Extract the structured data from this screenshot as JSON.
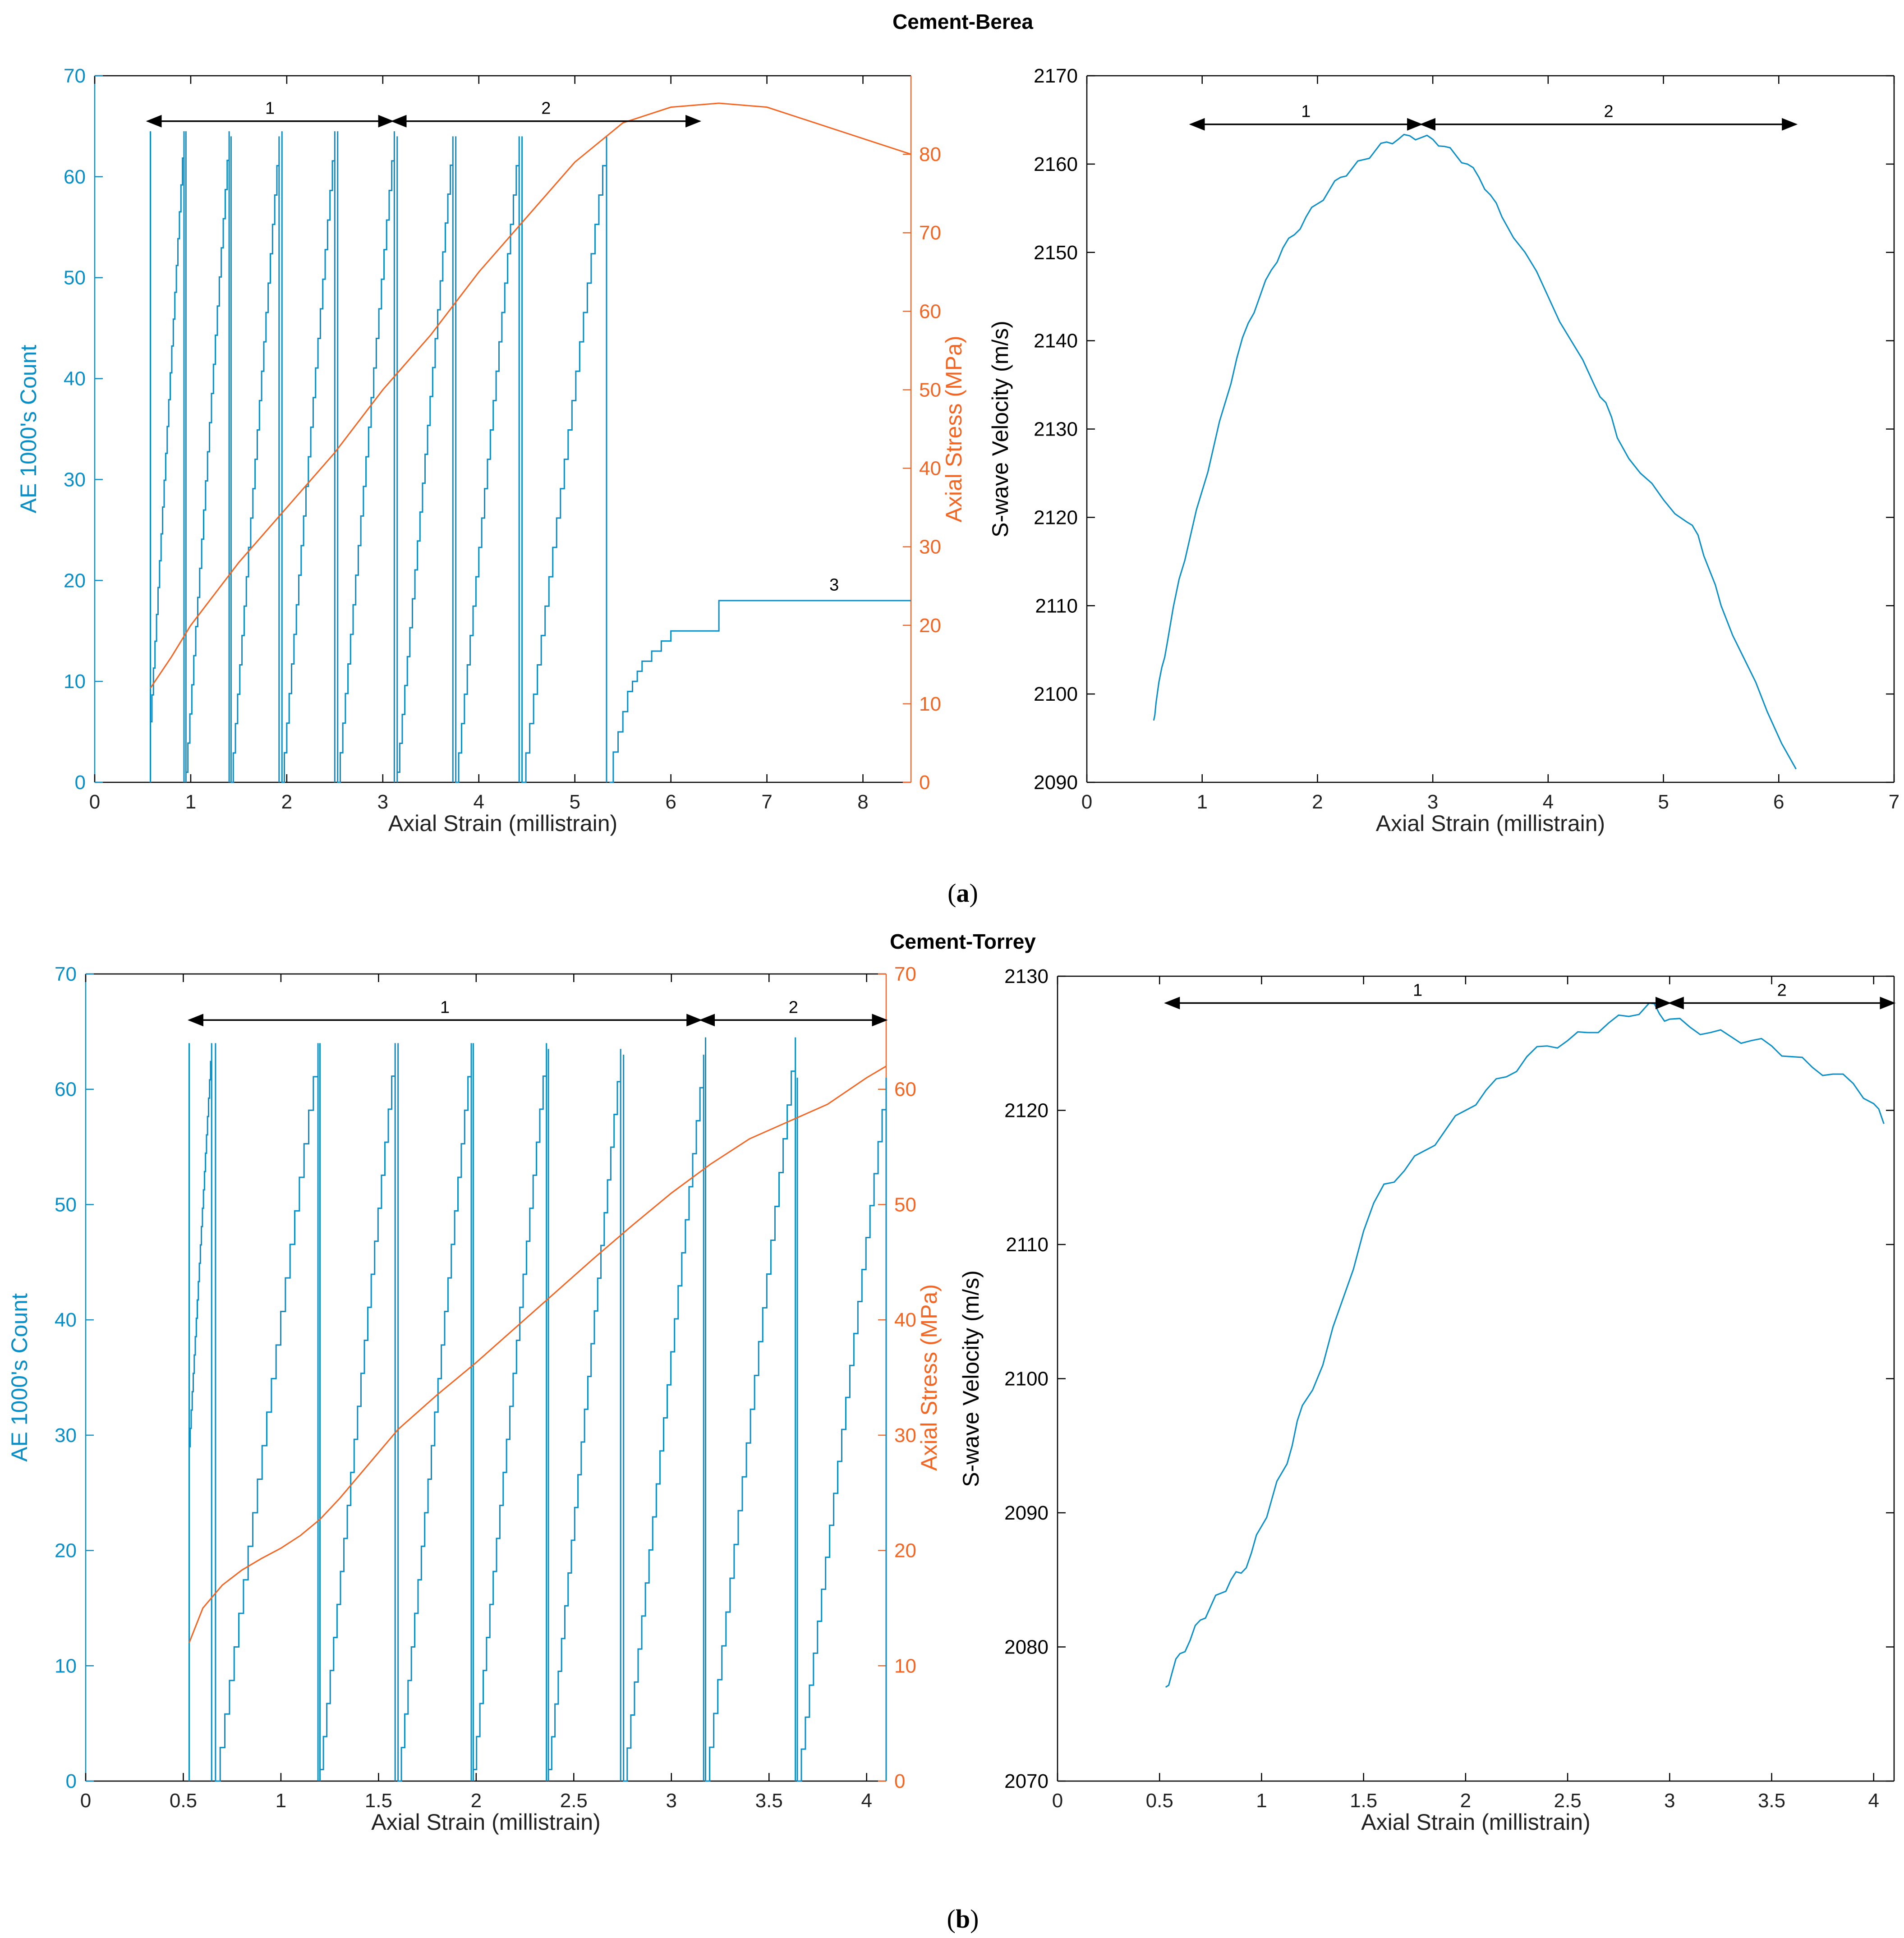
{
  "colors": {
    "ae": "#0a8ec6",
    "stress": "#f26522",
    "vel": "#0a8ec6",
    "axis": "#000000",
    "arrow": "#000000"
  },
  "figure": {
    "panel_a_title": "Cement-Berea",
    "panel_b_title": "Cement-Torrey",
    "caption_a": "a",
    "caption_b": "b"
  },
  "chart_data": [
    {
      "id": "a-left",
      "type": "line",
      "title": "Cement-Berea",
      "xlabel": "Axial Strain (millistrain)",
      "ylabel": "AE 1000's Count",
      "y2label": "Axial Stress (MPa)",
      "xlim": [
        0,
        8.5
      ],
      "ylim": [
        0,
        70
      ],
      "y2lim": [
        0,
        90
      ],
      "xticks": [
        0,
        1,
        2,
        3,
        4,
        5,
        6,
        7,
        8
      ],
      "xtick_labels": [
        "0",
        "1",
        "2",
        "3",
        "4",
        "5",
        "6",
        "7",
        "8"
      ],
      "yticks": [
        0,
        10,
        20,
        30,
        40,
        50,
        60,
        70
      ],
      "ytick_labels": [
        "0",
        "10",
        "20",
        "30",
        "40",
        "50",
        "60",
        "70"
      ],
      "y2ticks": [
        0,
        10,
        20,
        30,
        40,
        50,
        60,
        70,
        80
      ],
      "y2tick_labels": [
        "0",
        "10",
        "20",
        "30",
        "40",
        "50",
        "60",
        "70",
        "80"
      ],
      "ae_cycles": [
        {
          "x0": 0.58,
          "x1": 0.93,
          "y0": 6,
          "top": 64.5
        },
        {
          "x0": 0.95,
          "x1": 1.4,
          "y0": 1,
          "top": 64.5
        },
        {
          "x0": 1.42,
          "x1": 1.92,
          "y0": 0,
          "top": 64
        },
        {
          "x0": 1.95,
          "x1": 2.5,
          "y0": 0,
          "top": 64.5
        },
        {
          "x0": 2.53,
          "x1": 3.12,
          "y0": 0,
          "top": 64.5
        },
        {
          "x0": 3.15,
          "x1": 3.73,
          "y0": 1,
          "top": 64
        },
        {
          "x0": 3.76,
          "x1": 4.42,
          "y0": 0,
          "top": 64
        },
        {
          "x0": 4.45,
          "x1": 5.33,
          "y0": 0,
          "top": 64
        }
      ],
      "ae_tail": {
        "x": [
          5.36,
          5.4,
          5.45,
          5.5,
          5.55,
          5.6,
          5.65,
          5.7,
          5.8,
          5.9,
          6.0,
          6.4,
          6.5,
          8.5
        ],
        "y": [
          0,
          3,
          5,
          7,
          9,
          10,
          11,
          12,
          13,
          14,
          15,
          15,
          18,
          18
        ]
      },
      "stress_curve": {
        "x": [
          0.58,
          0.8,
          1.0,
          1.5,
          2.0,
          2.5,
          3.0,
          3.5,
          4.0,
          4.5,
          5.0,
          5.5,
          6.0,
          6.5,
          7.0,
          7.5,
          8.0,
          8.5
        ],
        "y": [
          12,
          16,
          20,
          28,
          35,
          42,
          50,
          57,
          65,
          72,
          79,
          84,
          86,
          86.5,
          86,
          84,
          82,
          80
        ]
      },
      "annotations": [
        {
          "type": "arrow",
          "x0": 0.55,
          "x1": 3.1,
          "y": 65.5,
          "label": "1"
        },
        {
          "type": "arrow",
          "x0": 3.1,
          "x1": 6.3,
          "y": 65.5,
          "label": "2"
        },
        {
          "type": "label",
          "x": 7.7,
          "y": 19,
          "label": "3"
        }
      ]
    },
    {
      "id": "a-right",
      "type": "line",
      "xlabel": "Axial Strain (millistrain)",
      "ylabel": "S-wave Velocity (m/s)",
      "xlim": [
        0,
        7
      ],
      "ylim": [
        2090,
        2170
      ],
      "xticks": [
        0,
        1,
        2,
        3,
        4,
        5,
        6,
        7
      ],
      "xtick_labels": [
        "0",
        "1",
        "2",
        "3",
        "4",
        "5",
        "6",
        "7"
      ],
      "yticks": [
        2090,
        2100,
        2110,
        2120,
        2130,
        2140,
        2150,
        2160,
        2170
      ],
      "ytick_labels": [
        "2090",
        "2100",
        "2110",
        "2120",
        "2130",
        "2140",
        "2150",
        "2160",
        "2170"
      ],
      "series": [
        {
          "name": "S-wave Velocity",
          "x": [
            0.58,
            0.6,
            0.65,
            0.7,
            0.8,
            0.9,
            1.0,
            1.1,
            1.2,
            1.3,
            1.4,
            1.5,
            1.6,
            1.7,
            1.8,
            1.9,
            2.0,
            2.1,
            2.2,
            2.3,
            2.4,
            2.5,
            2.6,
            2.7,
            2.8,
            2.9,
            3.0,
            3.1,
            3.2,
            3.3,
            3.4,
            3.5,
            3.6,
            3.8,
            4.0,
            4.2,
            4.4,
            4.5,
            4.6,
            4.8,
            5.0,
            5.2,
            5.3,
            5.4,
            5.5,
            5.7,
            5.9,
            6.15
          ],
          "y": [
            2097,
            2099,
            2103,
            2106,
            2113,
            2118,
            2123,
            2128,
            2133,
            2138,
            2142,
            2145,
            2148,
            2150.5,
            2152,
            2154,
            2155.5,
            2157,
            2158.5,
            2159.5,
            2160.5,
            2161.5,
            2162.5,
            2162.8,
            2163.2,
            2163,
            2162.8,
            2162,
            2161,
            2160,
            2158.5,
            2156.5,
            2154,
            2150,
            2145,
            2140,
            2135,
            2133,
            2129,
            2125,
            2122,
            2119.5,
            2118,
            2114,
            2110,
            2104,
            2098,
            2091.5
          ]
        }
      ],
      "annotations": [
        {
          "type": "arrow",
          "x0": 0.9,
          "x1": 2.9,
          "y": 2164.5,
          "label": "1"
        },
        {
          "type": "arrow",
          "x0": 2.9,
          "x1": 6.15,
          "y": 2164.5,
          "label": "2"
        }
      ]
    },
    {
      "id": "b-left",
      "type": "line",
      "title": "Cement-Torrey",
      "xlabel": "Axial Strain (millistrain)",
      "ylabel": "AE 1000's Count",
      "y2label": "Axial Stress (MPa)",
      "xlim": [
        0,
        4.1
      ],
      "ylim": [
        0,
        70
      ],
      "y2lim": [
        0,
        70
      ],
      "xticks": [
        0,
        0.5,
        1,
        1.5,
        2,
        2.5,
        3,
        3.5,
        4
      ],
      "xtick_labels": [
        "0",
        "0.5",
        "1",
        "1.5",
        "2",
        "2.5",
        "3",
        "3.5",
        "4"
      ],
      "yticks": [
        0,
        10,
        20,
        30,
        40,
        50,
        60,
        70
      ],
      "ytick_labels": [
        "0",
        "10",
        "20",
        "30",
        "40",
        "50",
        "60",
        "70"
      ],
      "y2ticks": [
        0,
        10,
        20,
        30,
        40,
        50,
        60,
        70
      ],
      "y2tick_labels": [
        "0",
        "10",
        "20",
        "30",
        "40",
        "50",
        "60",
        "70"
      ],
      "ae_cycles": [
        {
          "x0": 0.53,
          "x1": 0.645,
          "y0": 29,
          "top": 64
        },
        {
          "x0": 0.665,
          "x1": 1.19,
          "y0": 0,
          "top": 64
        },
        {
          "x0": 1.2,
          "x1": 1.585,
          "y0": 1,
          "top": 64
        },
        {
          "x0": 1.6,
          "x1": 1.975,
          "y0": 0,
          "top": 64
        },
        {
          "x0": 1.985,
          "x1": 2.36,
          "y0": 1,
          "top": 64
        },
        {
          "x0": 2.37,
          "x1": 2.74,
          "y0": 1,
          "top": 63.5
        },
        {
          "x0": 2.755,
          "x1": 3.165,
          "y0": 0,
          "top": 63
        },
        {
          "x0": 3.175,
          "x1": 3.635,
          "y0": 0,
          "top": 64.5
        },
        {
          "x0": 3.645,
          "x1": 4.1,
          "y0": 0,
          "top": 61
        }
      ],
      "stress_curve": {
        "x": [
          0.53,
          0.6,
          0.7,
          0.8,
          0.9,
          1.0,
          1.1,
          1.2,
          1.3,
          1.4,
          1.5,
          1.6,
          1.8,
          2.0,
          2.2,
          2.4,
          2.6,
          2.8,
          3.0,
          3.2,
          3.4,
          3.6,
          3.8,
          4.0,
          4.1
        ],
        "y": [
          12,
          15,
          17,
          18.3,
          19.3,
          20.2,
          21.3,
          22.7,
          24.5,
          26.5,
          28.5,
          30.5,
          33.5,
          36.3,
          39.3,
          42.3,
          45.3,
          48.2,
          51,
          53.5,
          55.7,
          57.2,
          58.7,
          61,
          62
        ]
      },
      "annotations": [
        {
          "type": "arrow",
          "x0": 0.53,
          "x1": 3.15,
          "y": 66,
          "label": "1"
        },
        {
          "type": "arrow",
          "x0": 3.15,
          "x1": 4.1,
          "y": 66,
          "label": "2"
        }
      ]
    },
    {
      "id": "b-right",
      "type": "line",
      "xlabel": "Axial Strain (millistrain)",
      "ylabel": "S-wave Velocity (m/s)",
      "xlim": [
        0,
        4.1
      ],
      "ylim": [
        2070,
        2130
      ],
      "xticks": [
        0,
        0.5,
        1,
        1.5,
        2,
        2.5,
        3,
        3.5,
        4
      ],
      "xtick_labels": [
        "0",
        "0.5",
        "1",
        "1.5",
        "2",
        "2.5",
        "3",
        "3.5",
        "4"
      ],
      "yticks": [
        2070,
        2080,
        2090,
        2100,
        2110,
        2120,
        2130
      ],
      "ytick_labels": [
        "2070",
        "2080",
        "2090",
        "2100",
        "2110",
        "2120",
        "2130"
      ],
      "series": [
        {
          "name": "S-wave Velocity",
          "x": [
            0.53,
            0.56,
            0.6,
            0.65,
            0.7,
            0.75,
            0.8,
            0.85,
            0.9,
            0.95,
            1.0,
            1.05,
            1.1,
            1.15,
            1.2,
            1.3,
            1.4,
            1.5,
            1.6,
            1.7,
            1.8,
            1.9,
            2.0,
            2.1,
            2.2,
            2.3,
            2.4,
            2.5,
            2.6,
            2.7,
            2.8,
            2.9,
            2.95,
            3.0,
            3.1,
            3.2,
            3.3,
            3.4,
            3.5,
            3.6,
            3.7,
            3.8,
            3.9,
            4.0,
            4.05
          ],
          "y": [
            2077,
            2078,
            2079.5,
            2080.5,
            2082,
            2083,
            2084,
            2085,
            2085.5,
            2087,
            2089,
            2091,
            2093,
            2095,
            2098,
            2101,
            2106,
            2111,
            2114.5,
            2115.5,
            2117,
            2118.5,
            2120,
            2121.5,
            2122.5,
            2124,
            2124.8,
            2125.2,
            2125.8,
            2126.5,
            2127,
            2128,
            2127.2,
            2126.8,
            2126.2,
            2125.8,
            2125.5,
            2125.2,
            2124.8,
            2124,
            2123.2,
            2122.7,
            2122,
            2120.5,
            2119
          ]
        }
      ],
      "annotations": [
        {
          "type": "arrow",
          "x0": 0.53,
          "x1": 3.0,
          "y": 2128,
          "label": "1"
        },
        {
          "type": "arrow",
          "x0": 3.0,
          "x1": 4.1,
          "y": 2128,
          "label": "2"
        }
      ]
    }
  ]
}
